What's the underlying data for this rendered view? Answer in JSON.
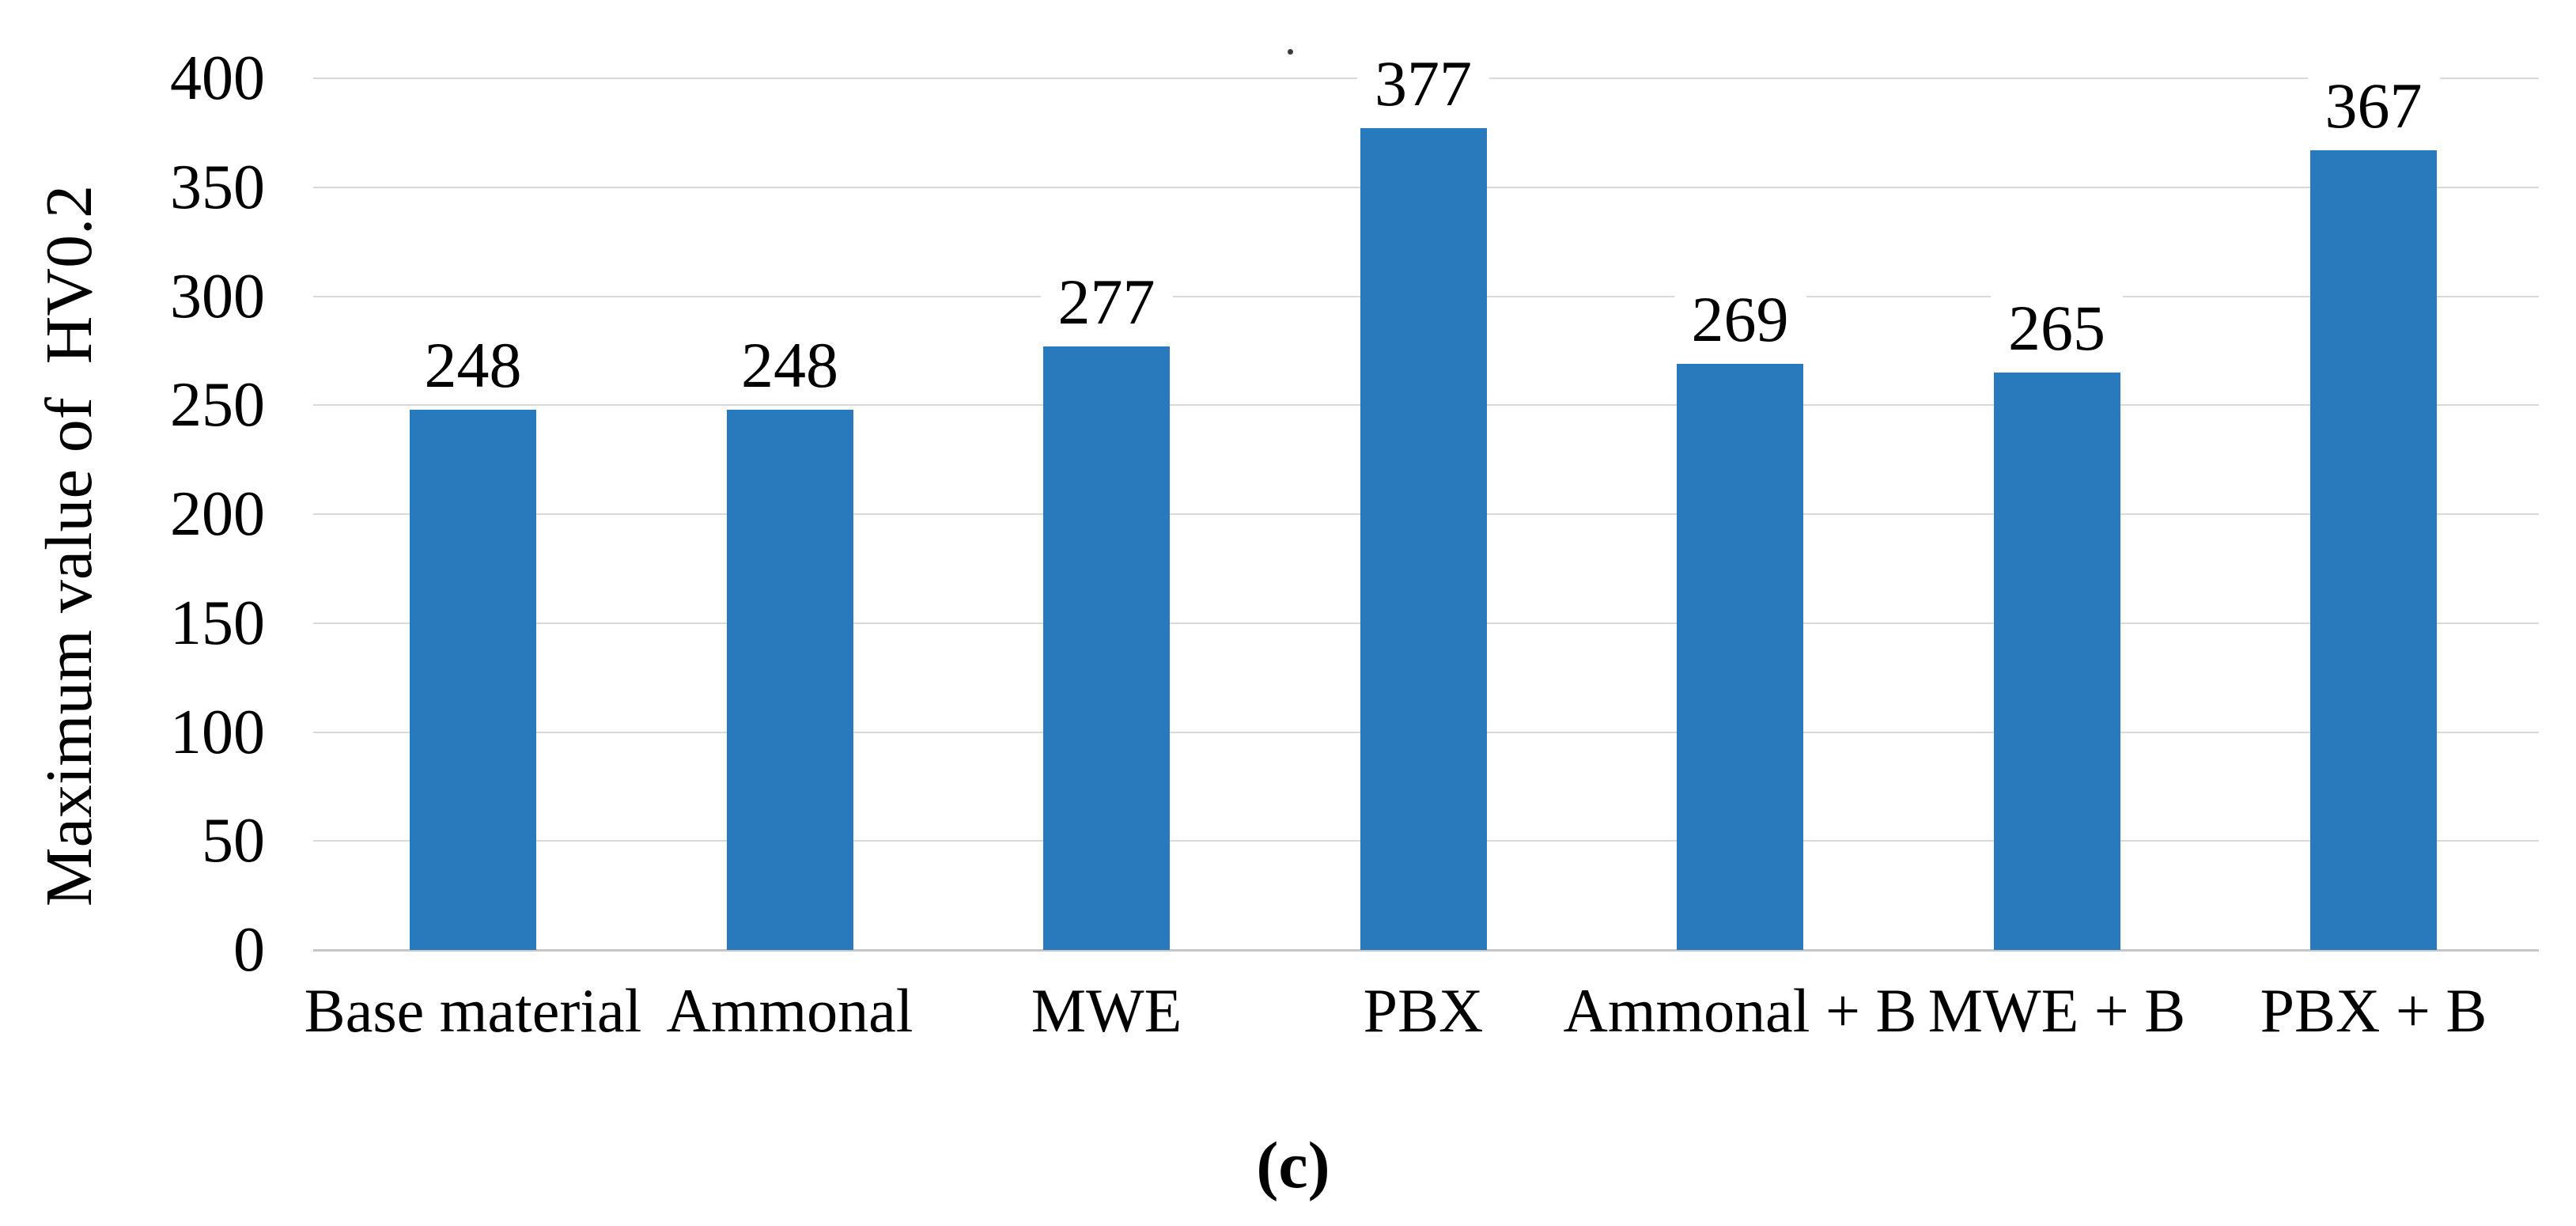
{
  "figure": {
    "caption": "(c)",
    "background": "#ffffff"
  },
  "chart_data": {
    "type": "bar",
    "title": "",
    "xlabel": "",
    "ylabel": "Maximum value of  HV0.2",
    "categories": [
      "Base material",
      "Ammonal",
      "MWE",
      "PBX",
      "Ammonal + B",
      "MWE + B",
      "PBX + B"
    ],
    "values": [
      248,
      248,
      277,
      377,
      269,
      265,
      367
    ],
    "value_labels": [
      "248",
      "248",
      "277",
      "377",
      "269",
      "265",
      "367"
    ],
    "ylim": [
      0,
      400
    ],
    "ytick_step": 50,
    "yticks": [
      0,
      50,
      100,
      150,
      200,
      250,
      300,
      350,
      400
    ],
    "grid": true,
    "legend": "none",
    "bar_color": "#2979bd",
    "gridline_color": "#d9d9d9",
    "axis_line_color": "#c6c6c6",
    "text_color": "#000000"
  }
}
